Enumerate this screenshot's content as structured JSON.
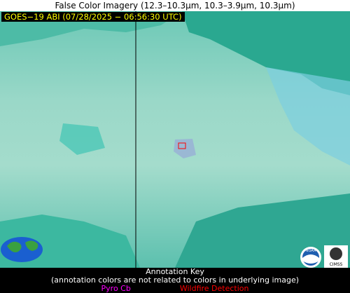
{
  "header": {
    "title": "False Color Imagery (12.3–10.3µm, 10.3–3.9µm, 10.3µm)"
  },
  "image": {
    "timestamp_label": "GOES−19 ABI (07/28/2025 − 06:56:30 UTC)"
  },
  "logos": {
    "noaa": "NOAA",
    "cimss": "CIMSS"
  },
  "key": {
    "title": "Annotation Key",
    "note": "(annotation colors are not related to colors in underlying image)",
    "items": [
      {
        "label": "Pyro Cb",
        "color": "#ff00ff"
      },
      {
        "label": "Wildfire Detection",
        "color": "#ff0000"
      }
    ]
  }
}
